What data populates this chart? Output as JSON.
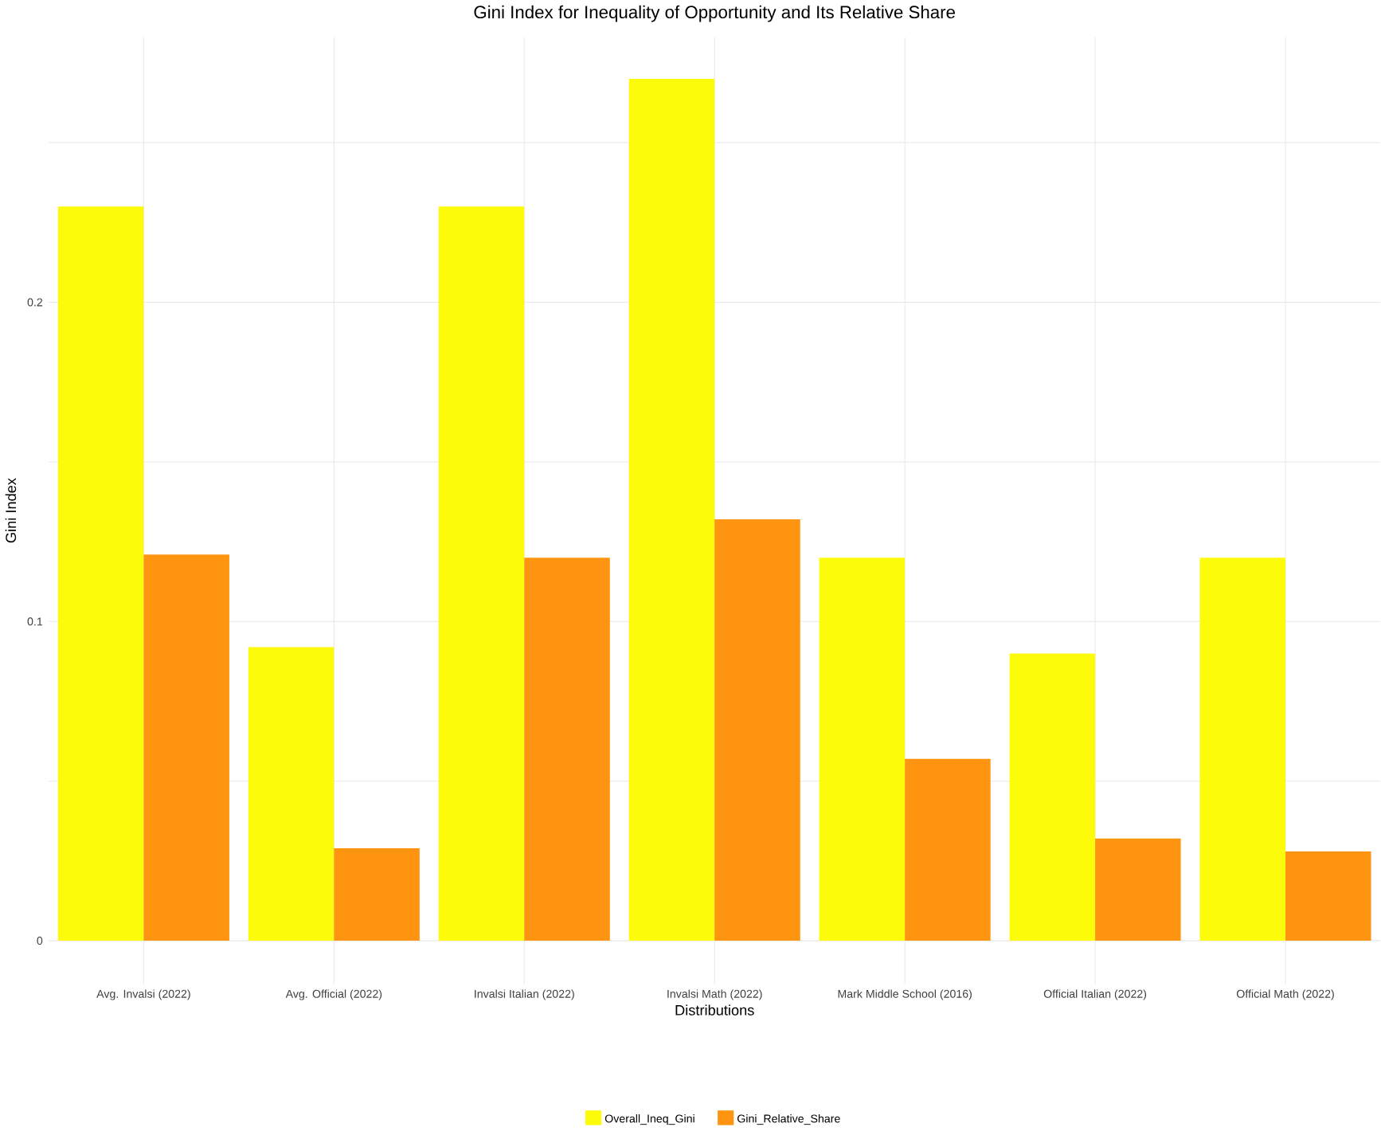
{
  "chart_data": {
    "type": "bar",
    "title": "Gini Index for Inequality of Opportunity and Its Relative Share",
    "xlabel": "Distributions",
    "ylabel": "Gini Index",
    "categories": [
      "Avg. Invalsi (2022)",
      "Avg. Official (2022)",
      "Invalsi Italian (2022)",
      "Invalsi Math (2022)",
      "Mark Middle School (2016)",
      "Official Italian (2022)",
      "Official Math (2022)"
    ],
    "series": [
      {
        "name": "Overall_Ineq_Gini",
        "color": "#fcfc0a",
        "values": [
          0.23,
          0.092,
          0.23,
          0.27,
          0.12,
          0.09,
          0.12
        ]
      },
      {
        "name": "Gini_Relative_Share",
        "color": "#ff9410",
        "values": [
          0.121,
          0.029,
          0.12,
          0.132,
          0.057,
          0.032,
          0.028
        ]
      }
    ],
    "ylim": [
      -0.0135,
      0.283
    ],
    "yticks": [
      0,
      {
        "value": 0.05,
        "label": null
      },
      0.1,
      {
        "value": 0.15,
        "label": null
      },
      0.2,
      {
        "value": 0.25,
        "label": null
      }
    ],
    "grid": true,
    "legend": "bottom"
  }
}
